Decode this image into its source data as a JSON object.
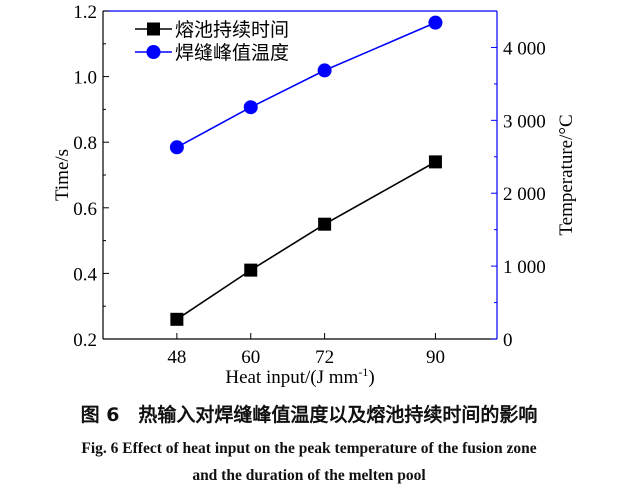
{
  "chart_data": {
    "type": "line",
    "x": [
      48,
      60,
      72,
      90
    ],
    "xlabel": "Heat input/(J  mm",
    "xlabel_sup": "-1",
    "xlabel_end": ")",
    "xlim": [
      36,
      100
    ],
    "xticks": [
      48,
      60,
      72,
      90
    ],
    "ylabel_left": "Time/s",
    "ylim_left": [
      0.2,
      1.2
    ],
    "yticks_left": [
      "0.2",
      "0.4",
      "0.6",
      "0.8",
      "1.0",
      "1.2"
    ],
    "ylabel_right": "Temperature/°C",
    "ylim_right": [
      0,
      4500
    ],
    "yticks_right": [
      "0",
      "1 000",
      "2 000",
      "3 000",
      "4 000"
    ],
    "grid": false,
    "legend": "top-left",
    "series": [
      {
        "name": "熔池持续时间",
        "axis": "left",
        "marker": "square",
        "color": "#000000",
        "values": [
          0.26,
          0.41,
          0.55,
          0.74
        ]
      },
      {
        "name": "焊缝峰值温度",
        "axis": "right",
        "marker": "circle",
        "color": "#0000ff",
        "values": [
          2630,
          3180,
          3685,
          4340
        ]
      }
    ],
    "right_axis_color": "#0000ff"
  },
  "caption": {
    "cn": "图 6　热输入对焊缝峰值温度以及熔池持续时间的影响",
    "en_line1": "Fig. 6    Effect of heat input on the peak temperature of the fusion zone",
    "en_line2": "and the duration of the melten pool"
  }
}
